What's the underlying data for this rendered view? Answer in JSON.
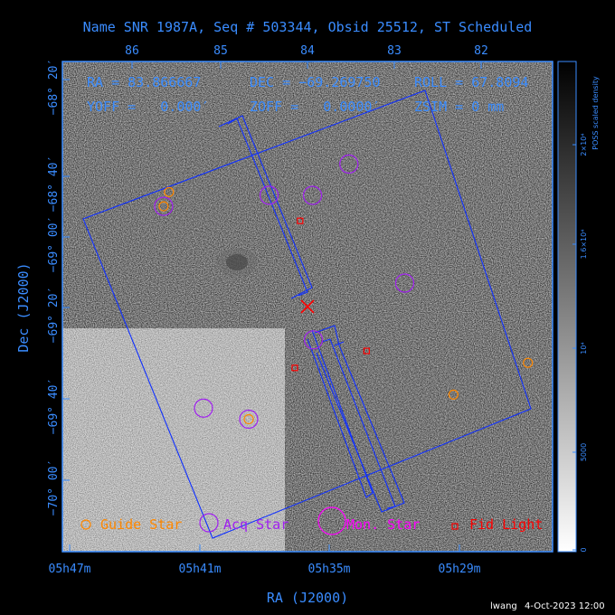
{
  "chart_data": {
    "type": "scatter",
    "title": "Name SNR 1987A, Seq # 503344, Obsid 25512, ST Scheduled",
    "xlabel": "RA (J2000)",
    "ylabel": "Dec (J2000)",
    "top_axis_ticks": [
      "86",
      "85",
      "84",
      "83",
      "82"
    ],
    "bottom_axis_ticks": [
      "05h47m",
      "05h41m",
      "05h35m",
      "05h29m"
    ],
    "left_axis_ticks": [
      "−68° 20′",
      "−68° 40′",
      "−69° 00′",
      "−69° 20′",
      "−69° 40′",
      "−70° 00′"
    ],
    "info": {
      "ra": "RA = 83.866667",
      "dec": "DEC = −69.269750",
      "roll": "ROLL = 67.8094",
      "yoff": "YOFF =   0.000′",
      "zoff": "ZOFF =   0.0000′",
      "zsim": "ZSIM = 0 mm"
    },
    "colorbar": {
      "label": "POSS scaled density",
      "ticks": [
        "0",
        "5000",
        "10⁴",
        "1.6×10⁴",
        "2×10⁴"
      ]
    },
    "legend": {
      "placement": "bottom",
      "guide": "Guide Star",
      "acq": "Acq Star",
      "mon": "Mon. Star",
      "fid": "Fid Light"
    },
    "target_ra_deg": 83.866667,
    "target_dec_deg": -69.26975,
    "guide_stars": [
      {
        "ra": 85.43,
        "dec": -68.546
      },
      {
        "ra": 85.49,
        "dec": -68.636
      },
      {
        "ra": 84.53,
        "dec": -69.981
      },
      {
        "ra": 82.22,
        "dec": -69.826
      },
      {
        "ra": 81.38,
        "dec": -69.625
      }
    ],
    "acq_stars": [
      {
        "ra": 85.49,
        "dec": -68.636,
        "size": 1
      },
      {
        "ra": 84.3,
        "dec": -68.566,
        "size": 1
      },
      {
        "ra": 83.81,
        "dec": -68.567,
        "size": 1
      },
      {
        "ra": 83.4,
        "dec": -68.369,
        "size": 1
      },
      {
        "ra": 82.77,
        "dec": -69.121,
        "size": 1
      },
      {
        "ra": 83.8,
        "dec": -69.48,
        "size": 1
      },
      {
        "ra": 85.04,
        "dec": -69.911,
        "size": 1
      },
      {
        "ra": 84.53,
        "dec": -69.981,
        "size": 1
      }
    ],
    "fid_lights": [
      {
        "ra": 83.95,
        "dec": -68.728
      },
      {
        "ra": 83.2,
        "dec": -69.55
      },
      {
        "ra": 84.01,
        "dec": -69.657
      }
    ],
    "colors": {
      "frame": "#3a8cff",
      "guide": "#ff8800",
      "acq": "#a020f0",
      "mon": "#ff00ff",
      "fid": "#ff0000",
      "target": "#ff0000",
      "fov": "#1030ff"
    }
  },
  "footer": {
    "user": "lwang",
    "date": "4-Oct-2023 12:00"
  }
}
